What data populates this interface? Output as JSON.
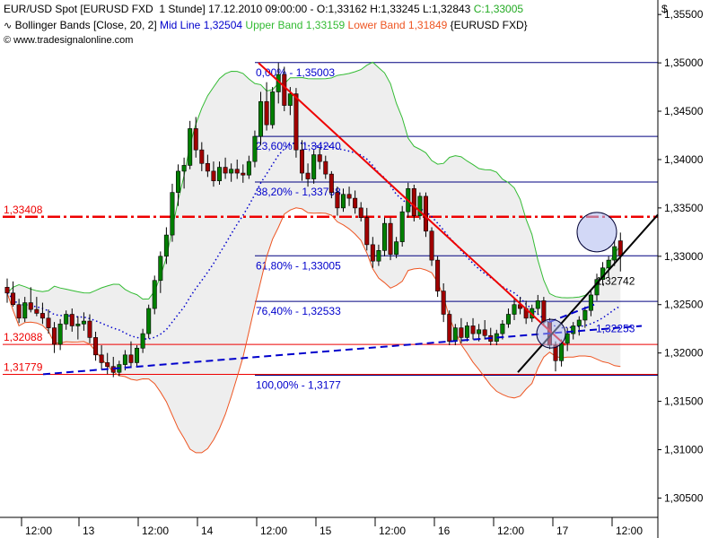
{
  "header": {
    "line1": {
      "instrument": "EUR/USD Spot [EURUSD FXD  1 Stunde]",
      "datetime": "17.12.2010 09:00:00",
      "ohlc_prefix": "- O:1,33162 H:1,33245 L:1,32843",
      "close": "C:1,33005"
    },
    "line2": {
      "indicator": "Bollinger Bands [Close, 20, 2]",
      "mid": "Mid Line 1,32504",
      "upper": "Upper Band 1,33159",
      "lower": "Lower Band 1,31849",
      "symbol": "{EURUSD FXD}"
    },
    "copyright": "© www.tradesignalonline.com"
  },
  "colors": {
    "up_candle": "#008000",
    "down_candle": "#a00000",
    "mid_line": "#0000cc",
    "upper_band": "#33bb33",
    "lower_band": "#ee5522",
    "fib_lines": "#000080",
    "fib_labels": "#0000cc",
    "horizontal_red": "#ee0000",
    "trend_red": "#ee0000",
    "trend_black": "#000000",
    "support_dashed": "#0000cc",
    "band_fill": "#eeeeee"
  },
  "chart_data": {
    "type": "candlestick",
    "currency_label": "$",
    "y_range": [
      1.303,
      1.3565
    ],
    "y_ticks": [
      "1,35500",
      "1,35000",
      "1,34500",
      "1,34000",
      "1,33500",
      "1,33000",
      "1,32500",
      "1,32000",
      "1,31500",
      "1,31000",
      "1,30500"
    ],
    "x_ticks": [
      "12:00",
      "13",
      "12:00",
      "14",
      "12:00",
      "15",
      "12:00",
      "16",
      "12:00",
      "17",
      "12:00"
    ],
    "fibonacci": [
      {
        "label": "0,00% - 1,35003",
        "value": 1.35003
      },
      {
        "label": "23,60% - 1,34240",
        "value": 1.3424
      },
      {
        "label": "38,20% - 1,33768",
        "value": 1.33768
      },
      {
        "label": "61,80% - 1,33005",
        "value": 1.33005
      },
      {
        "label": "76,40% - 1,32533",
        "value": 1.32533
      },
      {
        "label": "100,00% - 1,3177",
        "value": 1.3177
      }
    ],
    "horizontal_levels": [
      {
        "label": "1,33408",
        "value": 1.33408,
        "style": "dash-dot"
      },
      {
        "label": "1,32088",
        "value": 1.32088,
        "style": "solid"
      },
      {
        "label": "1,31779",
        "value": 1.31779,
        "style": "solid"
      }
    ],
    "annotations": [
      {
        "label": "1,32742",
        "value": 1.32742
      },
      {
        "label": "1,32253",
        "value": 1.32253
      }
    ],
    "candles": [
      [
        1.3268,
        1.3277,
        1.3252,
        1.3262
      ],
      [
        1.3262,
        1.3274,
        1.3248,
        1.325
      ],
      [
        1.325,
        1.3256,
        1.3231,
        1.3236
      ],
      [
        1.3236,
        1.3258,
        1.3232,
        1.3252
      ],
      [
        1.3252,
        1.3268,
        1.3242,
        1.3245
      ],
      [
        1.3245,
        1.3258,
        1.3238,
        1.3241
      ],
      [
        1.3241,
        1.3252,
        1.323,
        1.3236
      ],
      [
        1.3236,
        1.3245,
        1.322,
        1.3226
      ],
      [
        1.3226,
        1.3232,
        1.32,
        1.3209
      ],
      [
        1.3209,
        1.3235,
        1.3203,
        1.323
      ],
      [
        1.323,
        1.3244,
        1.3224,
        1.324
      ],
      [
        1.324,
        1.3246,
        1.3222,
        1.3228
      ],
      [
        1.3228,
        1.3238,
        1.3214,
        1.323
      ],
      [
        1.323,
        1.3242,
        1.3223,
        1.3233
      ],
      [
        1.3233,
        1.324,
        1.321,
        1.3216
      ],
      [
        1.3216,
        1.3222,
        1.3192,
        1.3198
      ],
      [
        1.3198,
        1.3208,
        1.3183,
        1.319
      ],
      [
        1.319,
        1.32,
        1.3178,
        1.3186
      ],
      [
        1.3186,
        1.3196,
        1.3175,
        1.318
      ],
      [
        1.318,
        1.3192,
        1.3176,
        1.3188
      ],
      [
        1.3188,
        1.3203,
        1.3182,
        1.3198
      ],
      [
        1.3198,
        1.3212,
        1.3185,
        1.319
      ],
      [
        1.319,
        1.3208,
        1.3185,
        1.3205
      ],
      [
        1.3205,
        1.3225,
        1.32,
        1.322
      ],
      [
        1.322,
        1.325,
        1.3215,
        1.3246
      ],
      [
        1.3246,
        1.328,
        1.324,
        1.3275
      ],
      [
        1.3275,
        1.3305,
        1.3262,
        1.33
      ],
      [
        1.33,
        1.333,
        1.3292,
        1.3322
      ],
      [
        1.3322,
        1.3375,
        1.3315,
        1.3366
      ],
      [
        1.3366,
        1.3395,
        1.3352,
        1.3388
      ],
      [
        1.3388,
        1.3402,
        1.337,
        1.3394
      ],
      [
        1.3394,
        1.344,
        1.339,
        1.3432
      ],
      [
        1.3432,
        1.3444,
        1.3402,
        1.341
      ],
      [
        1.341,
        1.3418,
        1.3388,
        1.3396
      ],
      [
        1.3396,
        1.3405,
        1.3382,
        1.3388
      ],
      [
        1.3388,
        1.3398,
        1.3372,
        1.3378
      ],
      [
        1.3378,
        1.3398,
        1.3374,
        1.3392
      ],
      [
        1.3392,
        1.3402,
        1.338,
        1.3386
      ],
      [
        1.3386,
        1.3396,
        1.3377,
        1.339
      ],
      [
        1.339,
        1.34,
        1.338,
        1.3386
      ],
      [
        1.3386,
        1.3395,
        1.3376,
        1.3384
      ],
      [
        1.3384,
        1.3404,
        1.338,
        1.3398
      ],
      [
        1.3398,
        1.343,
        1.3392,
        1.3424
      ],
      [
        1.3424,
        1.347,
        1.3415,
        1.346
      ],
      [
        1.346,
        1.348,
        1.343,
        1.3436
      ],
      [
        1.3436,
        1.3475,
        1.3432,
        1.347
      ],
      [
        1.347,
        1.35,
        1.3458,
        1.3488
      ],
      [
        1.3488,
        1.3496,
        1.345,
        1.3456
      ],
      [
        1.3456,
        1.3475,
        1.3446,
        1.3468
      ],
      [
        1.3468,
        1.3474,
        1.3402,
        1.341
      ],
      [
        1.341,
        1.342,
        1.3378,
        1.3386
      ],
      [
        1.3386,
        1.3396,
        1.3372,
        1.338
      ],
      [
        1.338,
        1.341,
        1.3375,
        1.3405
      ],
      [
        1.3405,
        1.3412,
        1.339,
        1.3398
      ],
      [
        1.3398,
        1.3404,
        1.338,
        1.3385
      ],
      [
        1.3385,
        1.3388,
        1.336,
        1.3366
      ],
      [
        1.3366,
        1.3372,
        1.3342,
        1.335
      ],
      [
        1.335,
        1.337,
        1.3346,
        1.3364
      ],
      [
        1.3364,
        1.3372,
        1.3352,
        1.336
      ],
      [
        1.336,
        1.3368,
        1.3344,
        1.335
      ],
      [
        1.335,
        1.3356,
        1.3336,
        1.334
      ],
      [
        1.334,
        1.335,
        1.3306,
        1.3312
      ],
      [
        1.3312,
        1.332,
        1.3288,
        1.3295
      ],
      [
        1.3295,
        1.3312,
        1.329,
        1.3306
      ],
      [
        1.3306,
        1.334,
        1.33,
        1.3334
      ],
      [
        1.3334,
        1.334,
        1.3296,
        1.3302
      ],
      [
        1.3302,
        1.332,
        1.3298,
        1.3315
      ],
      [
        1.3315,
        1.3352,
        1.331,
        1.3346
      ],
      [
        1.3346,
        1.3376,
        1.334,
        1.337
      ],
      [
        1.337,
        1.3374,
        1.3336,
        1.3342
      ],
      [
        1.3342,
        1.3366,
        1.3338,
        1.3362
      ],
      [
        1.3362,
        1.3366,
        1.332,
        1.3326
      ],
      [
        1.3326,
        1.333,
        1.329,
        1.3296
      ],
      [
        1.3296,
        1.33,
        1.3258,
        1.3264
      ],
      [
        1.3264,
        1.3272,
        1.3232,
        1.324
      ],
      [
        1.324,
        1.3244,
        1.3208,
        1.3212
      ],
      [
        1.3212,
        1.323,
        1.3208,
        1.3226
      ],
      [
        1.3226,
        1.3236,
        1.321,
        1.3216
      ],
      [
        1.3216,
        1.3232,
        1.3212,
        1.3228
      ],
      [
        1.3228,
        1.3236,
        1.3214,
        1.322
      ],
      [
        1.322,
        1.323,
        1.3212,
        1.3224
      ],
      [
        1.3224,
        1.3234,
        1.3214,
        1.3218
      ],
      [
        1.3218,
        1.3226,
        1.3208,
        1.3212
      ],
      [
        1.3212,
        1.3224,
        1.3208,
        1.322
      ],
      [
        1.322,
        1.3234,
        1.3214,
        1.323
      ],
      [
        1.323,
        1.3246,
        1.3226,
        1.324
      ],
      [
        1.324,
        1.3256,
        1.3234,
        1.325
      ],
      [
        1.325,
        1.3258,
        1.324,
        1.3246
      ],
      [
        1.3246,
        1.3254,
        1.323,
        1.3236
      ],
      [
        1.3236,
        1.325,
        1.3232,
        1.3246
      ],
      [
        1.3246,
        1.326,
        1.324,
        1.3254
      ],
      [
        1.3254,
        1.3258,
        1.3228,
        1.3232
      ],
      [
        1.3232,
        1.3236,
        1.3204,
        1.3208
      ],
      [
        1.3208,
        1.3212,
        1.3181,
        1.3192
      ],
      [
        1.3192,
        1.3214,
        1.3186,
        1.321
      ],
      [
        1.321,
        1.3226,
        1.3202,
        1.322
      ],
      [
        1.322,
        1.3232,
        1.3214,
        1.3228
      ],
      [
        1.3228,
        1.3238,
        1.3218,
        1.3234
      ],
      [
        1.3234,
        1.3248,
        1.3226,
        1.3244
      ],
      [
        1.3244,
        1.3266,
        1.3238,
        1.326
      ],
      [
        1.326,
        1.3282,
        1.3254,
        1.3276
      ],
      [
        1.3276,
        1.3294,
        1.327,
        1.3288
      ],
      [
        1.3288,
        1.33,
        1.3278,
        1.3296
      ],
      [
        1.3296,
        1.3316,
        1.329,
        1.331
      ],
      [
        1.3316,
        1.33245,
        1.32843,
        1.33005
      ]
    ]
  }
}
